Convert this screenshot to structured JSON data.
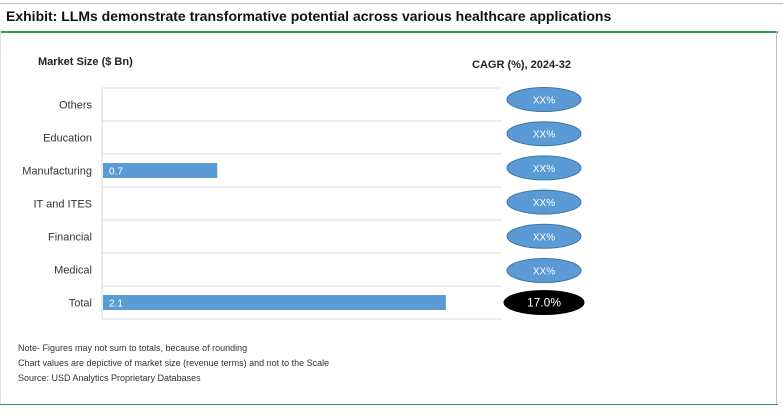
{
  "exhibit_title": "Exhibit: LLMs demonstrate transformative potential across various healthcare applications",
  "chart_data": {
    "type": "bar",
    "orientation": "horizontal",
    "categories": [
      "Others",
      "Education",
      "Manufacturing",
      "IT and ITES",
      "Financial",
      "Medical",
      "Total"
    ],
    "values": [
      null,
      null,
      0.7,
      null,
      null,
      null,
      2.1
    ],
    "value_labels": [
      "",
      "",
      "0.7",
      "",
      "",
      "",
      "2.1"
    ],
    "xlim": [
      0,
      2.45
    ],
    "ylabel": "Market Size ($ Bn)",
    "cagr_label": "CAGR (%), 2024-32",
    "cagr_values": [
      "XX%",
      "XX%",
      "XX%",
      "XX%",
      "XX%",
      "XX%",
      "17.0%"
    ],
    "bar_color": "#5b9bd5",
    "bubble_color": "#5b9bd5",
    "total_bubble_color": "#000000",
    "grid": true
  },
  "notes": [
    "Note- Figures may not sum to totals, because of rounding",
    "Chart values are depictive of market size (revenue terms) and not to the Scale",
    "Source: USD Analytics Proprietary Databases"
  ]
}
